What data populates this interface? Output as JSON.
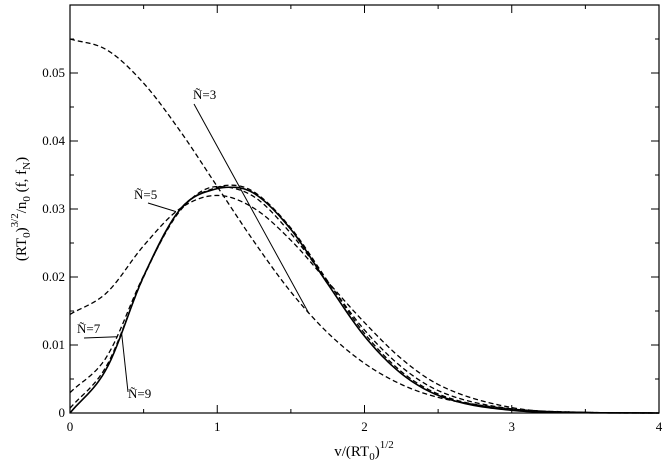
{
  "chart_data": {
    "type": "line",
    "xlabel": "v/(RT",
    "xlabel_sub": "0",
    "xlabel_tail": ")",
    "xlabel_sup": "1/2",
    "ylabel_parts": {
      "a": "(RT",
      "a_sub": "0",
      "a_close": ")",
      "a_sup": "3/2",
      "b": "/n",
      "b_sub": "0",
      "c": " (f, f",
      "c_sub": "N",
      "d": ")"
    },
    "xlim": [
      0,
      4
    ],
    "ylim": [
      0,
      0.06
    ],
    "xticks": [
      0,
      1,
      2,
      3,
      4
    ],
    "xtick_labels": [
      "0",
      "1",
      "2",
      "3",
      "4"
    ],
    "yticks": [
      0,
      0.01,
      0.02,
      0.03,
      0.04,
      0.05
    ],
    "ytick_labels": [
      "0",
      "0.01",
      "0.02",
      "0.03",
      "0.04",
      "0.05"
    ],
    "grid": false,
    "series": [
      {
        "label": "",
        "style": "solid",
        "x": [
          0,
          0.25,
          0.5,
          0.75,
          1.0,
          1.1,
          1.25,
          1.5,
          1.75,
          2.0,
          2.25,
          2.5,
          3.0,
          3.5,
          4.0
        ],
        "y": [
          0.0,
          0.0066,
          0.0201,
          0.03,
          0.033,
          0.0332,
          0.0323,
          0.027,
          0.019,
          0.0113,
          0.0058,
          0.0026,
          0.0004,
          4e-05,
          0.0
        ]
      },
      {
        "label": "Ñ=3",
        "style": "dashed",
        "x": [
          0,
          0.25,
          0.5,
          0.75,
          1.0,
          1.25,
          1.5,
          1.75,
          2.0,
          2.25,
          2.5,
          3.0,
          3.5,
          4.0
        ],
        "y": [
          0.055,
          0.0534,
          0.0485,
          0.0414,
          0.0333,
          0.0252,
          0.0178,
          0.0118,
          0.0073,
          0.0042,
          0.0023,
          0.0006,
          0.0001,
          0.0
        ]
      },
      {
        "label": "Ñ=5",
        "style": "dashed",
        "x": [
          0,
          0.25,
          0.5,
          0.75,
          1.0,
          1.25,
          1.5,
          1.75,
          2.0,
          2.25,
          2.5,
          3.0,
          3.5,
          4.0
        ],
        "y": [
          0.0145,
          0.0177,
          0.0246,
          0.0301,
          0.032,
          0.0301,
          0.0254,
          0.0193,
          0.0133,
          0.008,
          0.0042,
          0.0008,
          0.0001,
          0.0
        ]
      },
      {
        "label": "Ñ=7",
        "style": "dashed",
        "x": [
          0,
          0.25,
          0.5,
          0.75,
          1.0,
          1.25,
          1.5,
          1.75,
          2.0,
          2.25,
          2.5,
          3.0,
          3.5,
          4.0
        ],
        "y": [
          0.003,
          0.0083,
          0.0202,
          0.0298,
          0.0333,
          0.0318,
          0.0264,
          0.0193,
          0.0122,
          0.0068,
          0.0033,
          0.0006,
          8e-05,
          0.0
        ]
      },
      {
        "label": "Ñ=9",
        "style": "dashed",
        "x": [
          0,
          0.25,
          0.5,
          0.75,
          1.0,
          1.1,
          1.25,
          1.5,
          1.75,
          2.0,
          2.25,
          2.5,
          3.0,
          3.5,
          4.0
        ],
        "y": [
          0.0007,
          0.007,
          0.02,
          0.03,
          0.0332,
          0.0335,
          0.0325,
          0.0272,
          0.0194,
          0.0117,
          0.0061,
          0.0028,
          0.0005,
          5e-05,
          0.0
        ]
      }
    ],
    "annotations": [
      {
        "text": "Ñ=3",
        "series": 1
      },
      {
        "text": "Ñ=5",
        "series": 2
      },
      {
        "text": "Ñ=7",
        "series": 3
      },
      {
        "text": "Ñ=9",
        "series": 4
      }
    ]
  }
}
